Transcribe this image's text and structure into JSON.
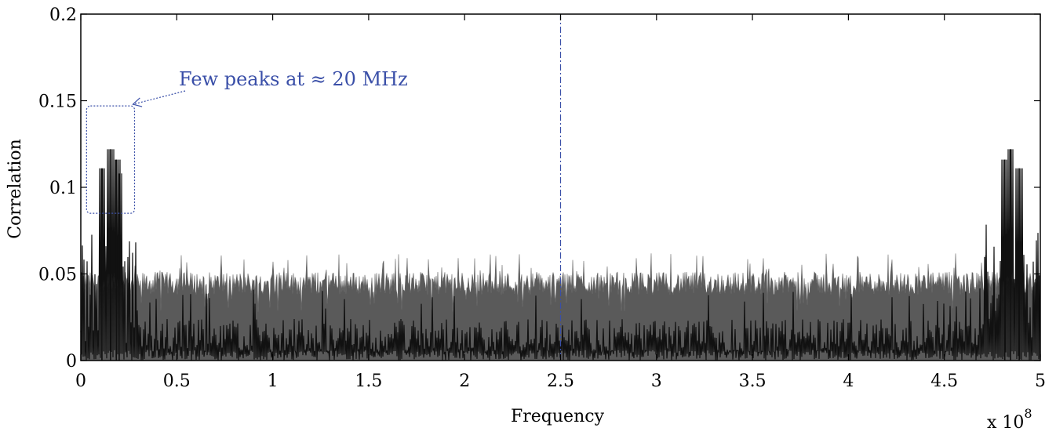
{
  "chart_data": {
    "type": "bar",
    "xlabel": "Frequency",
    "ylabel": "Correlation",
    "x_multiplier_label": "x 10",
    "x_multiplier_exponent": "8",
    "xlim": [
      0,
      500000000
    ],
    "ylim": [
      0,
      0.2
    ],
    "x_ticks": [
      0,
      50000000,
      100000000,
      150000000,
      200000000,
      250000000,
      300000000,
      350000000,
      400000000,
      450000000,
      500000000
    ],
    "x_tick_labels": [
      "0",
      "0.5",
      "1",
      "1.5",
      "2",
      "2.5",
      "3",
      "3.5",
      "4",
      "4.5",
      "5"
    ],
    "y_ticks": [
      0,
      0.05,
      0.1,
      0.15,
      0.2
    ],
    "y_tick_labels": [
      "0",
      "0.05",
      "0.1",
      "0.15",
      "0.2"
    ],
    "grid": false,
    "series": [
      {
        "style": "dense spectrum, gray",
        "color": "#5a5a5a",
        "baseline_value": 0.038,
        "typical_peak": 0.05,
        "max_value": 0.062
      },
      {
        "style": "dense spectrum, black",
        "color": "#111111",
        "typical_value": 0.015,
        "peaks": [
          {
            "x": 11000000,
            "y": 0.111
          },
          {
            "x": 15500000,
            "y": 0.122
          },
          {
            "x": 18500000,
            "y": 0.116
          },
          {
            "x": 20000000,
            "y": 0.108
          },
          {
            "x": 481500000,
            "y": 0.116
          },
          {
            "x": 484500000,
            "y": 0.122
          },
          {
            "x": 489000000,
            "y": 0.111
          }
        ]
      }
    ],
    "reference_line": {
      "x": 250000000,
      "color": "#3a4fa8",
      "style": "dash-dot"
    },
    "annotation": {
      "text": "Few peaks at ≈ 20 MHz",
      "target_x_range": [
        3000000,
        28000000
      ],
      "target_y_range": [
        0.085,
        0.147
      ],
      "color": "#3a4fa8"
    }
  }
}
